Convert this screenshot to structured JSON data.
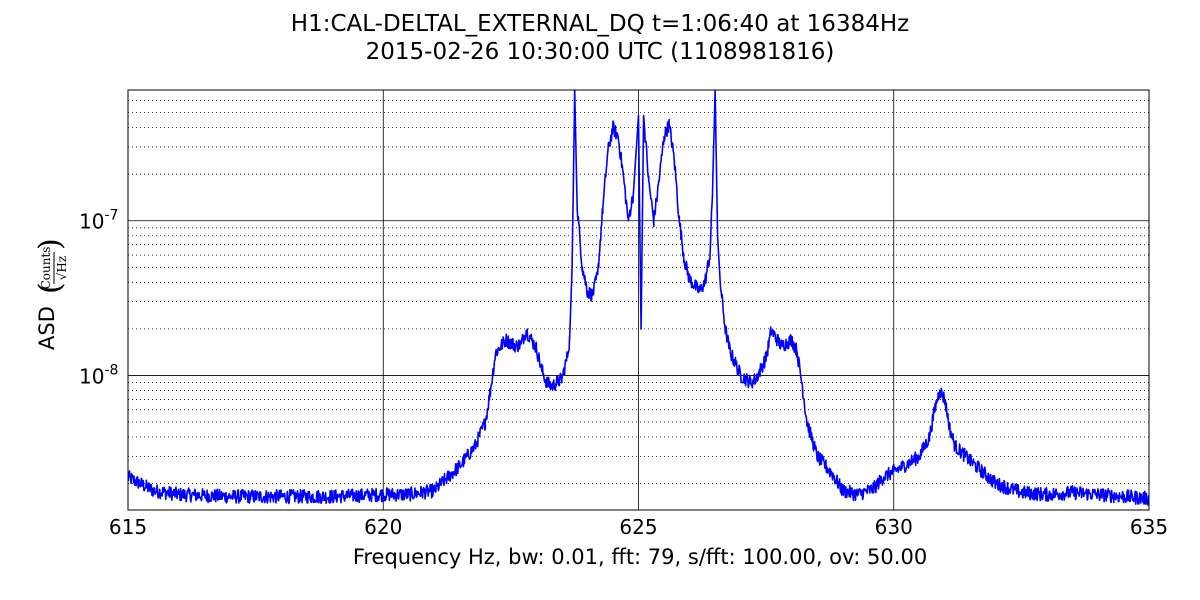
{
  "chart_data": {
    "type": "line",
    "title": "H1:CAL-DELTAL_EXTERNAL_DQ t=1:06:40 at 16384Hz",
    "subtitle": "2015-02-26 10:30:00 UTC (1108981816)",
    "xlabel": "Frequency Hz,  bw: 0.01, fft: 79, s/fft: 100.00, ov: 50.00",
    "ylabel": "ASD",
    "ylabel_units_num": "Counts",
    "ylabel_units_den": "√Hz",
    "xlim": [
      615,
      635
    ],
    "ylim": [
      1.35e-09,
      7e-07
    ],
    "yscale": "log",
    "grid": true,
    "line_color": "#0000ff",
    "x_ticks": [
      {
        "value": 615,
        "label": "615"
      },
      {
        "value": 620,
        "label": "620"
      },
      {
        "value": 625,
        "label": "625"
      },
      {
        "value": 630,
        "label": "630"
      },
      {
        "value": 635,
        "label": "635"
      }
    ],
    "y_ticks": [
      {
        "value": 1e-08,
        "base": "10",
        "exp": "-8"
      },
      {
        "value": 1e-07,
        "base": "10",
        "exp": "-7"
      }
    ],
    "series": [
      {
        "x": [
          615.0,
          615.5,
          616.0,
          617.0,
          618.0,
          619.0,
          620.0,
          620.5,
          621.0,
          621.2,
          621.5,
          621.8,
          622.0,
          622.1,
          622.2,
          622.4,
          622.6,
          622.7,
          622.8,
          623.0,
          623.1,
          623.2,
          623.3,
          623.4,
          623.5,
          623.6,
          623.65,
          623.7,
          623.75,
          623.8,
          623.9,
          624.0,
          624.1,
          624.2,
          624.3,
          624.4,
          624.5,
          624.6,
          624.7,
          624.8,
          624.9,
          625.0,
          625.05,
          625.1,
          625.2,
          625.3,
          625.4,
          625.5,
          625.6,
          625.7,
          625.8,
          625.9,
          626.0,
          626.1,
          626.2,
          626.3,
          626.4,
          626.45,
          626.5,
          626.55,
          626.6,
          626.7,
          626.8,
          626.9,
          627.0,
          627.2,
          627.3,
          627.5,
          627.6,
          627.8,
          628.0,
          628.1,
          628.2,
          628.3,
          628.5,
          628.8,
          629.0,
          629.3,
          629.6,
          629.8,
          630.0,
          630.2,
          630.5,
          630.7,
          630.8,
          630.9,
          631.0,
          631.1,
          631.2,
          631.5,
          632.0,
          632.5,
          633.0,
          633.5,
          634.0,
          634.5,
          635.0
        ],
        "y": [
          2.2e-09,
          1.8e-09,
          1.7e-09,
          1.65e-09,
          1.65e-09,
          1.65e-09,
          1.7e-09,
          1.7e-09,
          1.8e-09,
          2.1e-09,
          2.6e-09,
          3.5e-09,
          5e-09,
          8e-09,
          1.4e-08,
          1.7e-08,
          1.55e-08,
          1.6e-08,
          1.95e-08,
          1.5e-08,
          1.1e-08,
          9e-09,
          8.5e-09,
          9e-09,
          9.5e-09,
          1.3e-08,
          1.7e-08,
          5e-08,
          7e-07,
          1.2e-07,
          5e-08,
          3.5e-08,
          3.3e-08,
          4.5e-08,
          1.2e-07,
          2.8e-07,
          4e-07,
          3.5e-07,
          2e-07,
          1e-07,
          1.5e-07,
          4.8e-07,
          2e-08,
          4.8e-07,
          1.8e-07,
          1e-07,
          1.8e-07,
          3.5e-07,
          4.2e-07,
          2.5e-07,
          1e-07,
          5.5e-08,
          4.2e-08,
          3.8e-08,
          3.5e-08,
          4e-08,
          6e-08,
          1.5e-07,
          7e-07,
          8e-08,
          4e-08,
          2e-08,
          1.4e-08,
          1.2e-08,
          1e-08,
          9e-09,
          9.5e-09,
          1.3e-08,
          1.95e-08,
          1.55e-08,
          1.7e-08,
          1.45e-08,
          9e-09,
          5e-09,
          3e-09,
          2.3e-09,
          1.8e-09,
          1.7e-09,
          1.85e-09,
          2.2e-09,
          2.4e-09,
          2.6e-09,
          3e-09,
          4e-09,
          6e-09,
          8e-09,
          7e-09,
          4.5e-09,
          3.5e-09,
          2.8e-09,
          2e-09,
          1.75e-09,
          1.7e-09,
          1.75e-09,
          1.7e-09,
          1.65e-09,
          1.6e-09
        ]
      }
    ]
  }
}
